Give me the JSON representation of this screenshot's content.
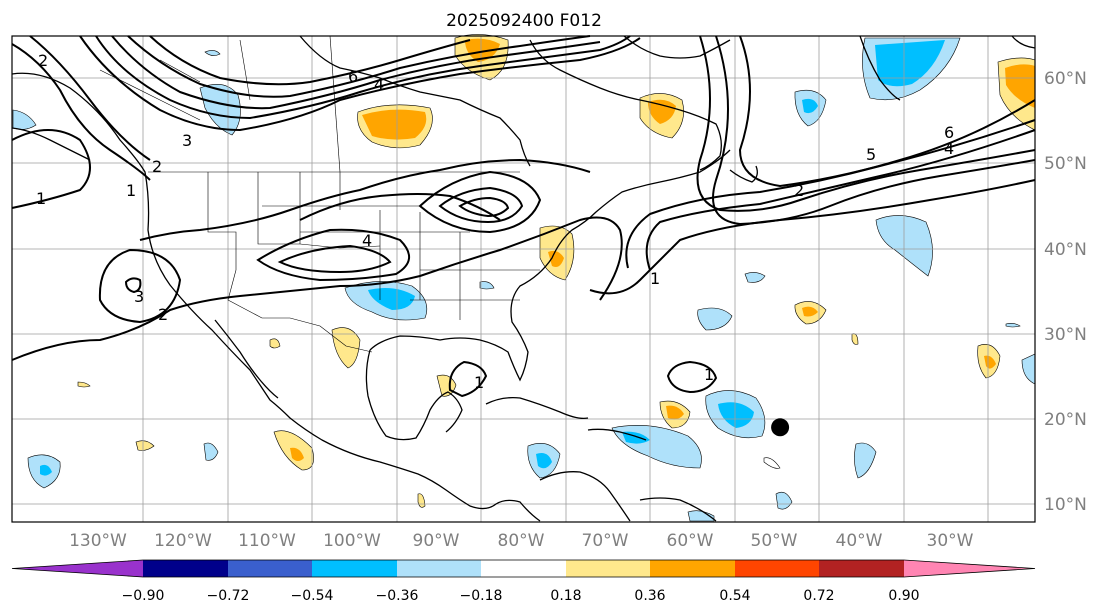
{
  "title": "2025092400 F012",
  "map": {
    "lon_labels": [
      "130°W",
      "120°W",
      "110°W",
      "100°W",
      "90°W",
      "80°W",
      "70°W",
      "60°W",
      "50°W",
      "40°W",
      "30°W"
    ],
    "lat_labels": [
      "60°N",
      "50°N",
      "40°N",
      "30°N",
      "20°N",
      "10°N"
    ],
    "contour_labels": [
      "1",
      "2",
      "3",
      "4",
      "5",
      "6"
    ],
    "storm_marker": {
      "lon": -54.6,
      "lat": 19.0
    }
  },
  "colorbar": {
    "ticks": [
      "−0.90",
      "−0.72",
      "−0.54",
      "−0.36",
      "−0.18",
      "0.18",
      "0.36",
      "0.54",
      "0.72",
      "0.90"
    ],
    "colors": [
      "#9932cc",
      "#00008b",
      "#3a5fcd",
      "#00bfff",
      "#afe1fa",
      "#ffffff",
      "#ffe88c",
      "#ffa500",
      "#ff4500",
      "#b22222",
      "#ff85b3"
    ]
  }
}
